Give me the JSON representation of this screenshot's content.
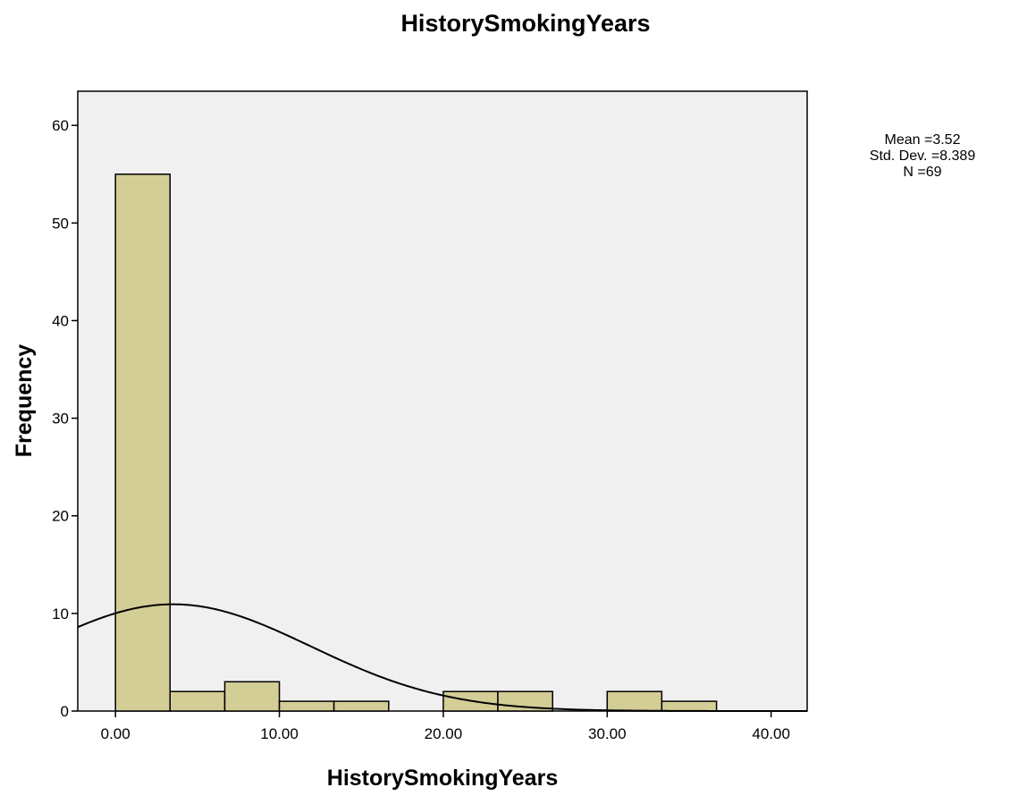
{
  "chart_data": {
    "type": "bar",
    "title": "HistorySmokingYears",
    "xlabel": "HistorySmokingYears",
    "ylabel": "Frequency",
    "xlim": [
      -2.3,
      42.2
    ],
    "ylim": [
      0,
      63.5
    ],
    "x_ticks": [
      0,
      10,
      20,
      30,
      40
    ],
    "x_tick_labels": [
      "0.00",
      "10.00",
      "20.00",
      "30.00",
      "40.00"
    ],
    "y_ticks": [
      0,
      10,
      20,
      30,
      40,
      50,
      60
    ],
    "y_tick_labels": [
      "0",
      "10",
      "20",
      "30",
      "40",
      "50",
      "60"
    ],
    "bins": [
      {
        "start": 0.0,
        "end": 3.33,
        "count": 55
      },
      {
        "start": 3.33,
        "end": 6.67,
        "count": 2
      },
      {
        "start": 6.67,
        "end": 10.0,
        "count": 3
      },
      {
        "start": 10.0,
        "end": 13.33,
        "count": 1
      },
      {
        "start": 13.33,
        "end": 16.67,
        "count": 1
      },
      {
        "start": 16.67,
        "end": 20.0,
        "count": 0
      },
      {
        "start": 20.0,
        "end": 23.33,
        "count": 2
      },
      {
        "start": 23.33,
        "end": 26.67,
        "count": 2
      },
      {
        "start": 26.67,
        "end": 30.0,
        "count": 0
      },
      {
        "start": 30.0,
        "end": 33.33,
        "count": 2
      },
      {
        "start": 33.33,
        "end": 36.67,
        "count": 1
      }
    ],
    "normal_curve": {
      "mean": 3.52,
      "std_dev": 8.389,
      "n": 69,
      "bin_width": 3.333
    },
    "stats": [
      "Mean =3.52",
      "Std. Dev. =8.389",
      "N =69"
    ],
    "grid": false,
    "colors": {
      "bar_fill": "#d3ce96",
      "bar_stroke": "#000000",
      "plot_background": "#f0f0f0",
      "curve": "#000000"
    }
  }
}
